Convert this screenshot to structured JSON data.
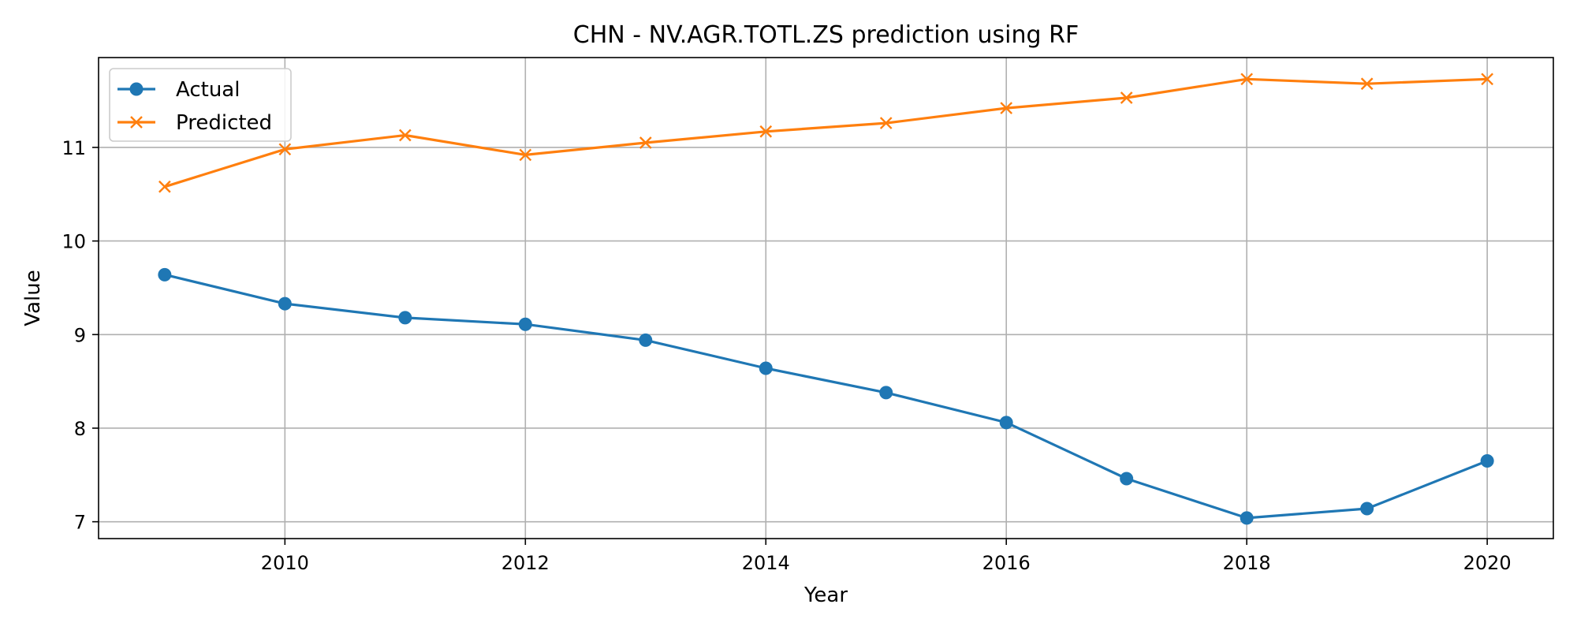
{
  "chart_data": {
    "type": "line",
    "title": "CHN - NV.AGR.TOTL.ZS prediction using RF",
    "xlabel": "Year",
    "ylabel": "Value",
    "x": [
      2009,
      2010,
      2011,
      2012,
      2013,
      2014,
      2015,
      2016,
      2017,
      2018,
      2019,
      2020
    ],
    "series": [
      {
        "name": "Actual",
        "marker": "circle",
        "color": "#1f77b4",
        "values": [
          9.64,
          9.33,
          9.18,
          9.11,
          8.94,
          8.64,
          8.38,
          8.06,
          7.46,
          7.04,
          7.14,
          7.65
        ]
      },
      {
        "name": "Predicted",
        "marker": "x",
        "color": "#ff7f0e",
        "values": [
          10.58,
          10.98,
          11.13,
          10.92,
          11.05,
          11.17,
          11.26,
          11.42,
          11.53,
          11.73,
          11.68,
          11.73
        ]
      }
    ],
    "xlim": [
      2008.45,
      2020.55
    ],
    "ylim": [
      6.82,
      11.96
    ],
    "xticks": [
      2010,
      2012,
      2014,
      2016,
      2018,
      2020
    ],
    "yticks": [
      7,
      8,
      9,
      10,
      11
    ],
    "grid": true,
    "legend_position": "upper left"
  }
}
